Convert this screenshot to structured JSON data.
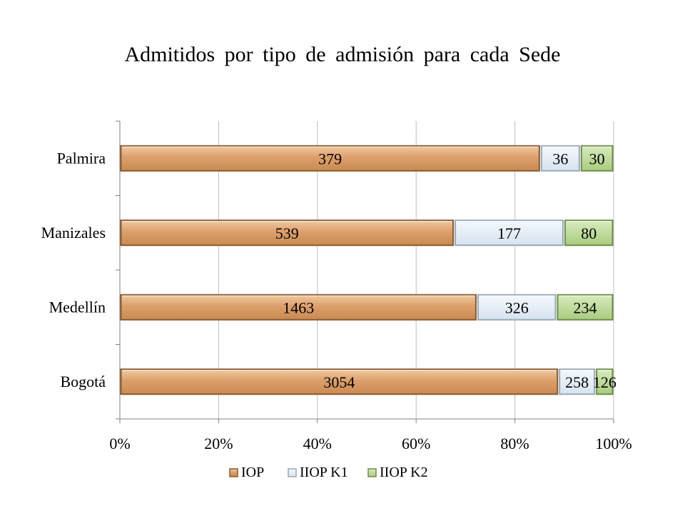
{
  "chart_data": {
    "type": "bar",
    "orientation": "horizontal",
    "stacked": "percent",
    "title": "Admitidos por tipo de admisión para cada Sede",
    "categories": [
      "Bogotá",
      "Medellín",
      "Manizales",
      "Palmira"
    ],
    "series": [
      {
        "name": "IOP",
        "values": [
          3054,
          1463,
          539,
          379
        ],
        "color": "#D4915A"
      },
      {
        "name": "IIOP K1",
        "values": [
          258,
          326,
          177,
          36
        ],
        "color": "#DCE8F4"
      },
      {
        "name": "IIOP K2",
        "values": [
          126,
          234,
          80,
          30
        ],
        "color": "#B4D48A"
      }
    ],
    "x_ticks": [
      "0%",
      "20%",
      "40%",
      "60%",
      "80%",
      "100%"
    ],
    "xlim": [
      0,
      100
    ],
    "grid": true,
    "legend": "bottom"
  },
  "colors": {
    "iop_border": "#8A5A2E",
    "k1_border": "#9AA9B8",
    "k2_border": "#6E8F48",
    "gridline": "#BFBFBF"
  }
}
